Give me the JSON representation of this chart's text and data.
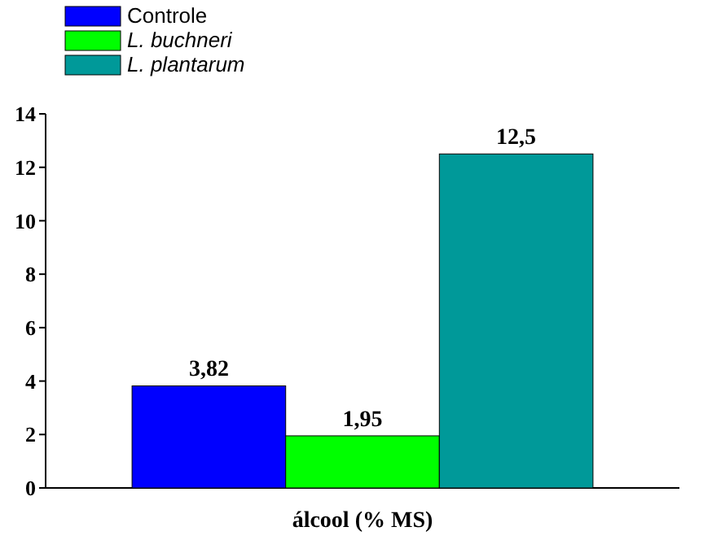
{
  "chart_data": {
    "type": "bar",
    "xlabel": "álcool (% MS)",
    "categories": [
      null
    ],
    "series": [
      {
        "name": "Controle",
        "color": "#0000ff",
        "values": [
          3.82
        ],
        "value_labels": [
          "3,82"
        ]
      },
      {
        "name": "L. buchneri",
        "color": "#00ff00",
        "values": [
          1.95
        ],
        "value_labels": [
          "1,95"
        ]
      },
      {
        "name": "L. plantarum",
        "color": "#009999",
        "values": [
          12.5
        ],
        "value_labels": [
          "12,5"
        ]
      }
    ],
    "ylim": [
      0,
      14
    ],
    "yticks": [
      0,
      2,
      4,
      6,
      8,
      10,
      12,
      14
    ],
    "grid": false,
    "legend": "top left"
  }
}
